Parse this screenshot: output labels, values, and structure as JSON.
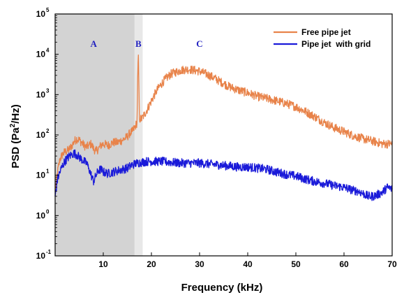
{
  "chart_data": {
    "type": "line",
    "xlabel": "Frequency (kHz)",
    "ylabel": "PSD (Pa",
    "ylabel_sup": "2",
    "ylabel_tail": "/Hz)",
    "xlim": [
      0,
      70
    ],
    "ylim": [
      0.1,
      100000
    ],
    "yscale": "log",
    "grid": false,
    "legend_position": "top-right",
    "x_ticks": [
      {
        "value": 10,
        "label": "10"
      },
      {
        "value": 20,
        "label": "20"
      },
      {
        "value": 30,
        "label": "30"
      },
      {
        "value": 40,
        "label": "40"
      },
      {
        "value": 50,
        "label": "50"
      },
      {
        "value": 60,
        "label": "60"
      },
      {
        "value": 70,
        "label": "70"
      }
    ],
    "y_ticks": [
      {
        "value": 0.1,
        "base": "10",
        "exp": "-1"
      },
      {
        "value": 1,
        "base": "10",
        "exp": "0"
      },
      {
        "value": 10,
        "base": "10",
        "exp": "1"
      },
      {
        "value": 100,
        "base": "10",
        "exp": "2"
      },
      {
        "value": 1000,
        "base": "10",
        "exp": "3"
      },
      {
        "value": 10000,
        "base": "10",
        "exp": "4"
      },
      {
        "value": 100000,
        "base": "10",
        "exp": "5"
      }
    ],
    "regions": [
      {
        "label": "A",
        "x_start": 0,
        "x_end": 16.5,
        "color": "#d3d3d3",
        "label_x": 8
      },
      {
        "label": "B",
        "x_start": 16.5,
        "x_end": 18.2,
        "color": "#e8e8e8",
        "label_x": 17.3
      },
      {
        "label": "C",
        "x_start": 18.2,
        "x_end": 70,
        "color": "#ffffff",
        "label_x": 30
      }
    ],
    "series": [
      {
        "name": "Free pipe jet",
        "color": "#e8834a",
        "x": [
          0,
          0.5,
          1,
          1.5,
          2,
          2.5,
          3,
          3.5,
          4,
          4.5,
          5,
          5.5,
          6,
          6.5,
          7,
          7.5,
          8,
          8.5,
          9,
          9.5,
          10,
          11,
          12,
          13,
          14,
          15,
          15.5,
          16,
          16.5,
          17,
          17.2,
          17.3,
          17.5,
          18,
          19,
          20,
          21,
          22,
          23,
          24,
          25,
          26,
          27,
          28,
          29,
          30,
          31,
          32,
          33,
          34,
          35,
          36,
          38,
          40,
          42,
          44,
          46,
          48,
          50,
          52,
          54,
          56,
          58,
          60,
          62,
          64,
          65,
          66,
          67,
          68,
          69,
          70
        ],
        "y": [
          4,
          12,
          25,
          32,
          38,
          40,
          45,
          55,
          70,
          80,
          75,
          65,
          55,
          50,
          55,
          60,
          45,
          40,
          45,
          55,
          60,
          55,
          65,
          65,
          75,
          90,
          110,
          120,
          150,
          200,
          5000,
          8000,
          250,
          250,
          400,
          700,
          1200,
          1800,
          2500,
          3200,
          3600,
          4000,
          4200,
          4200,
          4000,
          3800,
          3400,
          3000,
          2600,
          2200,
          1900,
          1600,
          1300,
          1100,
          900,
          800,
          700,
          600,
          500,
          380,
          280,
          200,
          150,
          120,
          95,
          80,
          75,
          70,
          65,
          60,
          60,
          60
        ]
      },
      {
        "name": "Pipe jet  with grid",
        "color": "#1a1ad9",
        "x": [
          0,
          0.5,
          1,
          1.5,
          2,
          2.5,
          3,
          3.5,
          4,
          4.5,
          5,
          5.5,
          6,
          6.5,
          7,
          7.5,
          8,
          8.5,
          9,
          9.5,
          10,
          11,
          12,
          13,
          14,
          15,
          16,
          17,
          18,
          19,
          20,
          22,
          24,
          26,
          28,
          30,
          32,
          34,
          36,
          38,
          40,
          42,
          44,
          46,
          48,
          50,
          52,
          54,
          56,
          58,
          60,
          62,
          63,
          64,
          65,
          66,
          67,
          68,
          69,
          70
        ],
        "y": [
          3,
          8,
          12,
          17,
          22,
          26,
          30,
          33,
          35,
          32,
          28,
          25,
          22,
          20,
          15,
          10,
          7,
          10,
          13,
          14,
          12,
          11,
          12,
          13,
          14,
          15,
          18,
          20,
          21,
          22,
          22,
          22,
          21,
          20,
          20,
          20,
          19,
          18,
          17,
          16,
          16,
          15,
          14,
          12,
          10.5,
          9.5,
          8,
          7,
          6.3,
          5.5,
          5,
          4.2,
          4,
          3.5,
          3,
          3,
          3.3,
          3.8,
          5,
          4.5
        ]
      }
    ]
  }
}
